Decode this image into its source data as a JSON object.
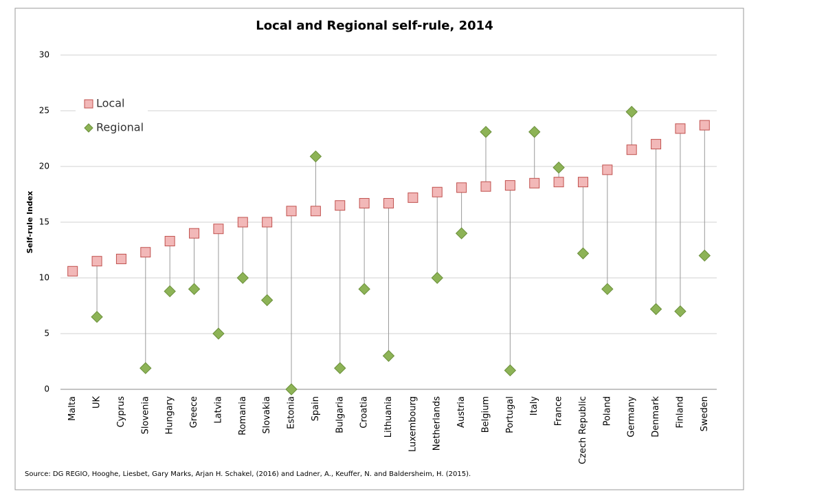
{
  "chart_data": {
    "type": "dot",
    "title": "Local and Regional  self-rule, 2014",
    "y_label": "Self-rule Index",
    "source": "Source: DG REGIO,  Hooghe, Liesbet, Gary Marks, Arjan H. Schakel, (2016) and Ladner, A., Keuffer, N. and Baldersheim, H. (2015).",
    "categories": [
      "Malta",
      "UK",
      "Cyprus",
      "Slovenia",
      "Hungary",
      "Greece",
      "Latvia",
      "Romania",
      "Slovakia",
      "Estonia",
      "Spain",
      "Bulgaria",
      "Croatia",
      "Lithuania",
      "Luxembourg",
      "Netherlands",
      "Austria",
      "Belgium",
      "Portugal",
      "Italy",
      "France",
      "Czech Republic",
      "Poland",
      "Germany",
      "Denmark",
      "Finland",
      "Sweden"
    ],
    "series": [
      {
        "name": "Local",
        "color": "#f2b8b8",
        "values": [
          10.6,
          11.5,
          11.7,
          12.3,
          13.3,
          14.0,
          14.4,
          15.0,
          15.0,
          16.0,
          16.0,
          16.5,
          16.7,
          16.7,
          17.2,
          17.7,
          18.1,
          18.2,
          18.3,
          18.5,
          18.6,
          18.6,
          19.7,
          21.5,
          22.0,
          23.4,
          23.7
        ]
      },
      {
        "name": "Regional",
        "color": "#8db356",
        "values": [
          null,
          6.5,
          null,
          1.9,
          8.8,
          9.0,
          5.0,
          10.0,
          8.0,
          0,
          20.9,
          1.9,
          9.0,
          3.0,
          null,
          10.0,
          14.0,
          23.1,
          1.7,
          23.1,
          19.9,
          12.2,
          9.0,
          24.9,
          7.2,
          7.0,
          12.0
        ]
      }
    ],
    "ylim": [
      0,
      30
    ],
    "yticks": [
      0,
      5,
      10,
      15,
      20,
      25,
      30
    ],
    "grid": true,
    "legend": "upper-left"
  }
}
